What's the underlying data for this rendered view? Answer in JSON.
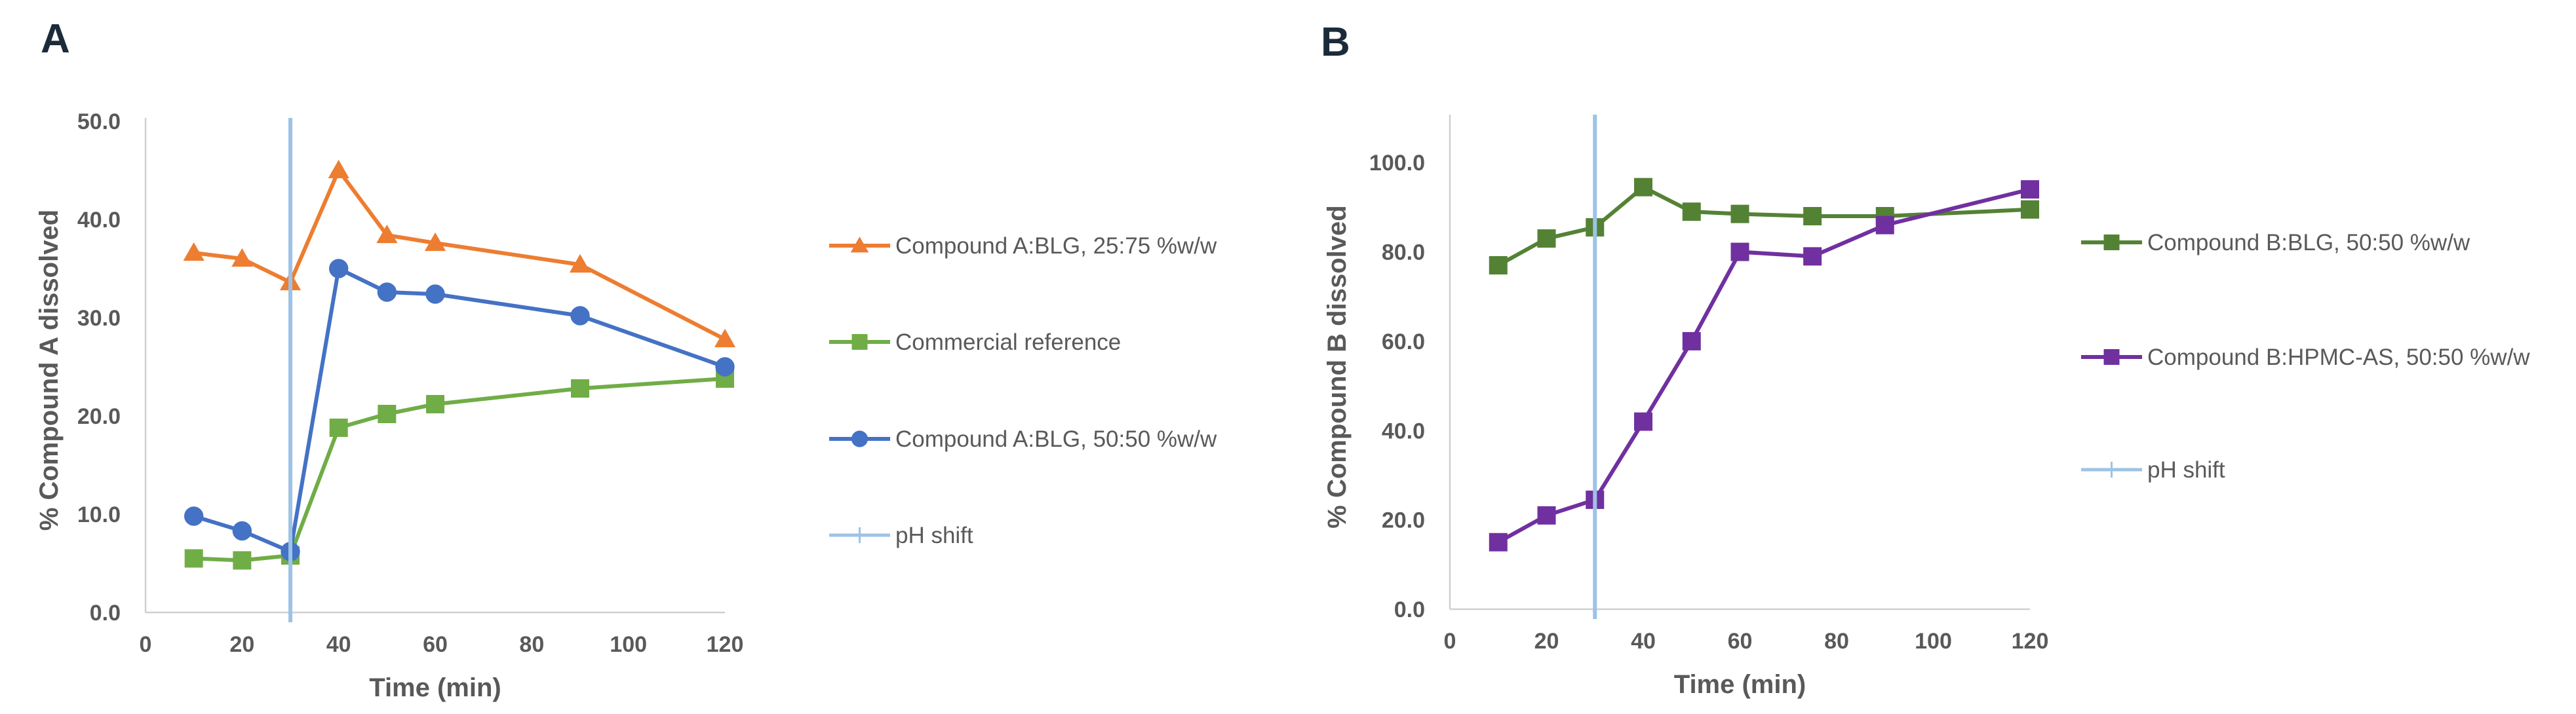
{
  "chart_data": [
    {
      "panel": "A",
      "type": "line",
      "xlabel": "Time (min)",
      "ylabel": "% Compound A dissolved",
      "xlim": [
        0,
        120
      ],
      "ylim": [
        0,
        50
      ],
      "xticks": [
        0,
        20,
        40,
        60,
        80,
        100,
        120
      ],
      "yticks": [
        "0.0",
        "10.0",
        "20.0",
        "30.0",
        "40.0",
        "50.0"
      ],
      "grid": false,
      "legend_position": "right",
      "series": [
        {
          "name": "Compound A:BLG, 25:75 %w/w",
          "color": "#ed7d31",
          "marker": "triangle",
          "x": [
            10,
            20,
            30,
            40,
            50,
            60,
            90,
            120
          ],
          "y": [
            36.6,
            36.0,
            33.6,
            45.0,
            38.4,
            37.6,
            35.4,
            27.8
          ]
        },
        {
          "name": "Commercial reference",
          "color": "#70ad47",
          "marker": "square",
          "x": [
            10,
            20,
            30,
            40,
            50,
            60,
            90,
            120
          ],
          "y": [
            5.5,
            5.3,
            5.8,
            18.8,
            20.2,
            21.2,
            22.8,
            23.8
          ]
        },
        {
          "name": "Compound A:BLG, 50:50 %w/w",
          "color": "#4472c4",
          "marker": "circle",
          "x": [
            10,
            20,
            30,
            40,
            50,
            60,
            90,
            120
          ],
          "y": [
            9.8,
            8.3,
            6.2,
            35.0,
            32.6,
            32.4,
            30.2,
            25.0
          ]
        },
        {
          "name": "pH shift",
          "color": "#9dc3e6",
          "marker": "vline",
          "x": [
            30
          ]
        }
      ]
    },
    {
      "panel": "B",
      "type": "line",
      "xlabel": "Time (min)",
      "ylabel": "% Compound B dissolved",
      "xlim": [
        0,
        120
      ],
      "ylim": [
        0,
        110
      ],
      "xticks": [
        0,
        20,
        40,
        60,
        80,
        100,
        120
      ],
      "yticks": [
        "0.0",
        "20.0",
        "40.0",
        "60.0",
        "80.0",
        "100.0"
      ],
      "grid": false,
      "legend_position": "right",
      "series": [
        {
          "name": "Compound B:BLG, 50:50 %w/w",
          "color": "#548235",
          "marker": "square",
          "x": [
            10,
            20,
            30,
            40,
            50,
            60,
            75,
            90,
            120
          ],
          "y": [
            77,
            83,
            85.5,
            94.5,
            89,
            88.5,
            88,
            88,
            89.5
          ]
        },
        {
          "name": "Compound B:HPMC-AS, 50:50 %w/w",
          "color": "#7030a0",
          "marker": "square",
          "x": [
            10,
            20,
            30,
            40,
            50,
            60,
            75,
            90,
            120
          ],
          "y": [
            15,
            21,
            24.5,
            42,
            60,
            80,
            79,
            86,
            94
          ]
        },
        {
          "name": "pH shift",
          "color": "#9dc3e6",
          "marker": "vline",
          "x": [
            30
          ]
        }
      ]
    }
  ]
}
